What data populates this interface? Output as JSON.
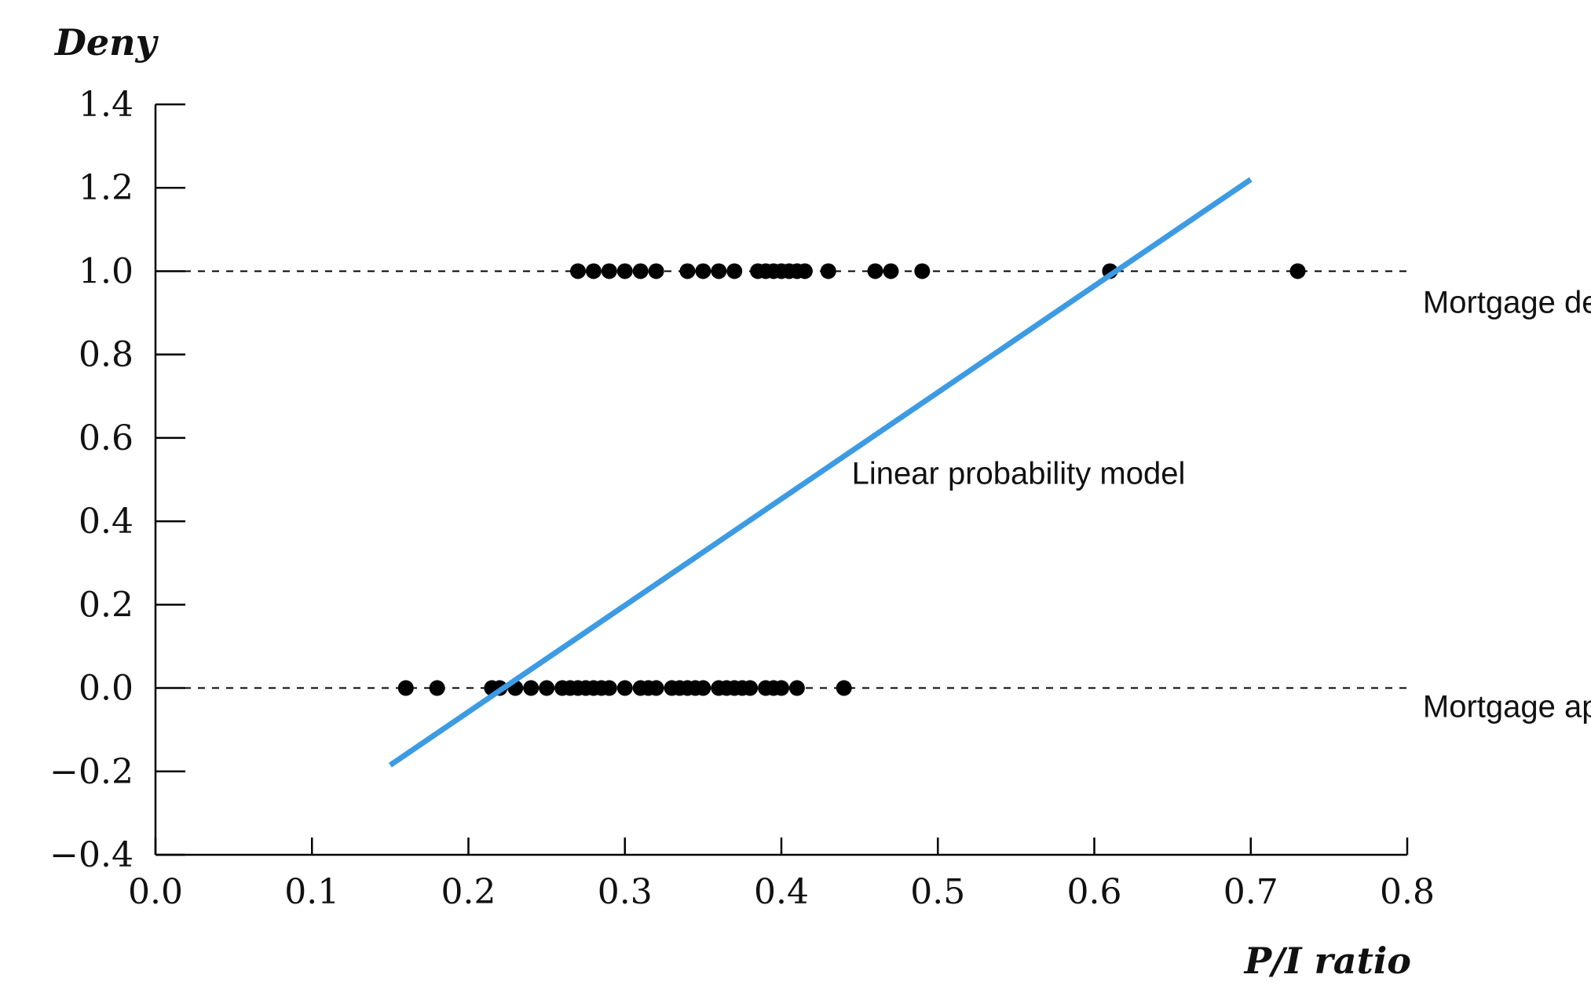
{
  "chart_data": {
    "type": "scatter",
    "title": "",
    "xlabel": "P/I ratio",
    "ylabel": "Deny",
    "xlim": [
      0.0,
      0.8
    ],
    "ylim": [
      -0.4,
      1.4
    ],
    "x_ticks": [
      "0.0",
      "0.1",
      "0.2",
      "0.3",
      "0.4",
      "0.5",
      "0.6",
      "0.7",
      "0.8"
    ],
    "y_ticks": [
      "1.4",
      "1.2",
      "1.0",
      "0.8",
      "0.6",
      "0.4",
      "0.2",
      "0.0",
      "−0.2",
      "−0.4"
    ],
    "grid": false,
    "reference_lines": [
      {
        "y": 1.0,
        "style": "dashed"
      },
      {
        "y": 0.0,
        "style": "dashed"
      }
    ],
    "series": [
      {
        "type": "scatter",
        "y": 1.0,
        "x": [
          0.27,
          0.28,
          0.29,
          0.3,
          0.31,
          0.32,
          0.34,
          0.35,
          0.36,
          0.37,
          0.385,
          0.39,
          0.395,
          0.4,
          0.405,
          0.41,
          0.415,
          0.43,
          0.46,
          0.47,
          0.49,
          0.61,
          0.73
        ]
      },
      {
        "type": "scatter",
        "y": 0.0,
        "x": [
          0.16,
          0.18,
          0.215,
          0.22,
          0.23,
          0.24,
          0.25,
          0.26,
          0.265,
          0.27,
          0.275,
          0.28,
          0.285,
          0.29,
          0.3,
          0.31,
          0.315,
          0.32,
          0.33,
          0.335,
          0.34,
          0.345,
          0.35,
          0.36,
          0.365,
          0.37,
          0.375,
          0.38,
          0.39,
          0.395,
          0.4,
          0.41,
          0.44
        ]
      },
      {
        "type": "line",
        "name": "Linear probability model",
        "x": [
          0.15,
          0.7
        ],
        "y": [
          -0.185,
          1.22
        ],
        "color": "#3d9be3"
      }
    ],
    "annotations": [
      {
        "text": "Mortgage denied",
        "x": 0.81,
        "y": 0.9
      },
      {
        "text": "Mortgage approved",
        "x": 0.81,
        "y": -0.07
      },
      {
        "text": "Linear probability model",
        "x": 0.445,
        "y": 0.49
      }
    ]
  }
}
